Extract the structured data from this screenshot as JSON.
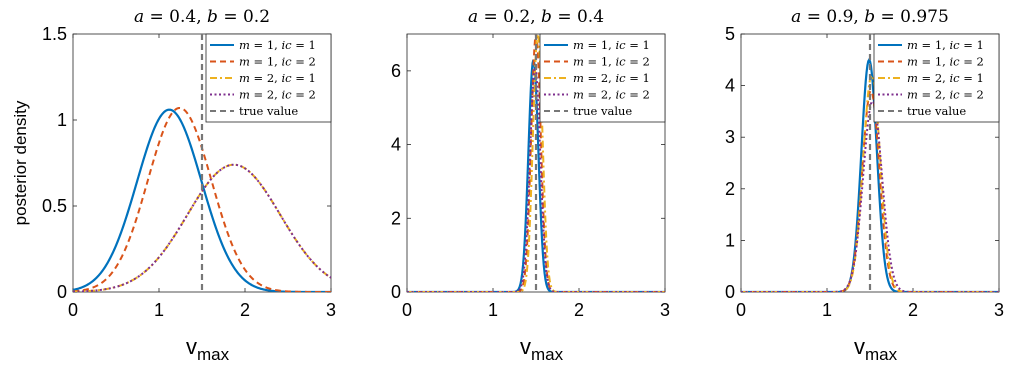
{
  "chart_data": [
    {
      "type": "line",
      "title": "a = 0.4, b = 0.2",
      "title_parts": [
        "a",
        " = 0.4, ",
        "b",
        " = 0.2"
      ],
      "xlabel": "v",
      "xlabel_sub": "max",
      "ylabel": "posterior density",
      "xlim": [
        0,
        3
      ],
      "ylim": [
        0,
        1.5
      ],
      "xticks": [
        "0",
        "1",
        "2",
        "3"
      ],
      "yticks": [
        "0",
        "0.5",
        "1",
        "1.5"
      ],
      "ytick_values": [
        0,
        0.5,
        1,
        1.5
      ],
      "true_value": 1.5,
      "grid": false,
      "legend_position": "top-right",
      "series": [
        {
          "name": "m = 1, ic = 1",
          "style": "solid",
          "color": "#0072BD",
          "shape": {
            "type": "gaussian",
            "mean": 1.12,
            "sd": 0.375,
            "peak": 1.06
          }
        },
        {
          "name": "m = 1, ic = 2",
          "style": "dashed",
          "color": "#D95319",
          "shape": {
            "type": "gaussian",
            "mean": 1.24,
            "sd": 0.37,
            "peak": 1.07
          }
        },
        {
          "name": "m = 2, ic = 1",
          "style": "dashdot",
          "color": "#EDB120",
          "shape": {
            "type": "gaussian",
            "mean": 1.87,
            "sd": 0.54,
            "peak": 0.74
          }
        },
        {
          "name": "m = 2, ic = 2",
          "style": "dotted",
          "color": "#7E2F8E",
          "shape": {
            "type": "gaussian",
            "mean": 1.87,
            "sd": 0.54,
            "peak": 0.74
          }
        }
      ]
    },
    {
      "type": "line",
      "title": "a = 0.2, b = 0.4",
      "title_parts": [
        "a",
        " = 0.2, ",
        "b",
        " = 0.4"
      ],
      "xlabel": "v",
      "xlabel_sub": "max",
      "ylabel": "",
      "xlim": [
        0,
        3
      ],
      "ylim": [
        0,
        7
      ],
      "xticks": [
        "0",
        "1",
        "2",
        "3"
      ],
      "yticks": [
        "0",
        "2",
        "4",
        "6"
      ],
      "ytick_values": [
        0,
        2,
        4,
        6
      ],
      "true_value": 1.5,
      "grid": false,
      "legend_position": "top-right",
      "series": [
        {
          "name": "m = 1, ic = 1",
          "style": "solid",
          "color": "#0072BD",
          "shape": {
            "type": "gaussian",
            "mean": 1.47,
            "sd": 0.058,
            "peak": 6.3
          }
        },
        {
          "name": "m = 1, ic = 2",
          "style": "dashed",
          "color": "#D95319",
          "shape": {
            "type": "gaussian",
            "mean": 1.5,
            "sd": 0.056,
            "peak": 7.0
          }
        },
        {
          "name": "m = 2, ic = 1",
          "style": "dashdot",
          "color": "#EDB120",
          "shape": {
            "type": "gaussian",
            "mean": 1.52,
            "sd": 0.056,
            "peak": 7.0
          }
        },
        {
          "name": "m = 2, ic = 2",
          "style": "dotted",
          "color": "#7E2F8E",
          "shape": {
            "type": "gaussian",
            "mean": 1.49,
            "sd": 0.06,
            "peak": 6.1
          }
        }
      ]
    },
    {
      "type": "line",
      "title": "a = 0.9, b = 0.975",
      "title_parts": [
        "a",
        " = 0.9, ",
        "b",
        " = 0.975"
      ],
      "xlabel": "v",
      "xlabel_sub": "max",
      "ylabel": "",
      "xlim": [
        0,
        3
      ],
      "ylim": [
        0,
        5
      ],
      "xticks": [
        "0",
        "1",
        "2",
        "3"
      ],
      "yticks": [
        "0",
        "1",
        "2",
        "3",
        "4",
        "5"
      ],
      "ytick_values": [
        0,
        1,
        2,
        3,
        4,
        5
      ],
      "true_value": 1.5,
      "grid": false,
      "legend_position": "top-right",
      "series": [
        {
          "name": "m = 1, ic = 1",
          "style": "solid",
          "color": "#0072BD",
          "shape": {
            "type": "gaussian",
            "mean": 1.49,
            "sd": 0.09,
            "peak": 4.5
          }
        },
        {
          "name": "m = 1, ic = 2",
          "style": "dashed",
          "color": "#D95319",
          "shape": {
            "type": "gaussian",
            "mean": 1.51,
            "sd": 0.1,
            "peak": 3.9
          }
        },
        {
          "name": "m = 2, ic = 1",
          "style": "dashdot",
          "color": "#EDB120",
          "shape": {
            "type": "gaussian",
            "mean": 1.52,
            "sd": 0.1,
            "peak": 4.2
          }
        },
        {
          "name": "m = 2, ic = 2",
          "style": "dotted",
          "color": "#7E2F8E",
          "shape": {
            "type": "gaussian",
            "mean": 1.53,
            "sd": 0.11,
            "peak": 3.7
          }
        }
      ]
    }
  ],
  "legend_true_value_label": "true value",
  "true_value_color": "#777777"
}
